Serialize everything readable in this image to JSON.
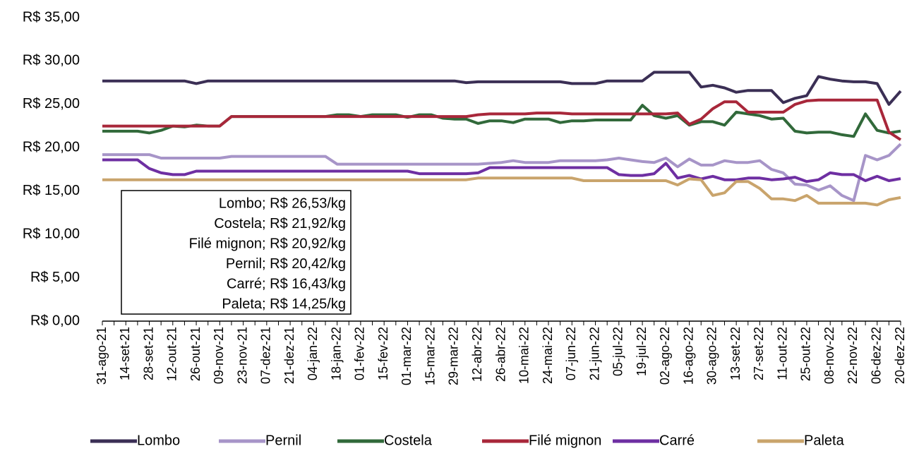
{
  "chart_data": {
    "type": "line",
    "categories": [
      "31-ago-21",
      null,
      "14-set-21",
      null,
      "28-set-21",
      null,
      "12-out-21",
      null,
      "26-out-21",
      null,
      "09-nov-21",
      null,
      "23-nov-21",
      null,
      "07-dez-21",
      null,
      "21-dez-21",
      null,
      "04-jan-22",
      null,
      "18-jan-22",
      null,
      "01-fev-22",
      null,
      "15-fev-22",
      null,
      "01-mar-22",
      null,
      "15-mar-22",
      null,
      "29-mar-22",
      null,
      "12-abr-22",
      null,
      "26-abr-22",
      null,
      "10-mai-22",
      null,
      "24-mai-22",
      null,
      "07-jun-22",
      null,
      "21-jun-22",
      null,
      "05-jul-22",
      null,
      "19-jul-22",
      null,
      "02-ago-22",
      null,
      "16-ago-22",
      null,
      "30-ago-22",
      null,
      "13-set-22",
      null,
      "27-set-22",
      null,
      "11-out-22",
      null,
      "25-out-22",
      null,
      "08-nov-22",
      null,
      "22-nov-22",
      null,
      "06-dez-22",
      null,
      "20-dez-22"
    ],
    "series": [
      {
        "name": "Lombo",
        "color": "#3b2f55",
        "values": [
          27.7,
          27.7,
          27.7,
          27.7,
          27.7,
          27.7,
          27.7,
          27.7,
          27.4,
          27.7,
          27.7,
          27.7,
          27.7,
          27.7,
          27.7,
          27.7,
          27.7,
          27.7,
          27.7,
          27.7,
          27.7,
          27.7,
          27.7,
          27.7,
          27.7,
          27.7,
          27.7,
          27.7,
          27.7,
          27.7,
          27.7,
          27.5,
          27.6,
          27.6,
          27.6,
          27.6,
          27.6,
          27.6,
          27.6,
          27.6,
          27.4,
          27.4,
          27.4,
          27.7,
          27.7,
          27.7,
          27.7,
          28.7,
          28.7,
          28.7,
          28.7,
          27.0,
          27.2,
          26.9,
          26.4,
          26.6,
          26.6,
          26.6,
          25.2,
          25.7,
          26.0,
          28.2,
          27.9,
          27.7,
          27.6,
          27.6,
          27.4,
          25.0,
          26.53
        ]
      },
      {
        "name": "Pernil",
        "color": "#a795c8",
        "values": [
          19.2,
          19.2,
          19.2,
          19.2,
          19.2,
          18.8,
          18.8,
          18.8,
          18.8,
          18.8,
          18.8,
          19.0,
          19.0,
          19.0,
          19.0,
          19.0,
          19.0,
          19.0,
          19.0,
          19.0,
          18.1,
          18.1,
          18.1,
          18.1,
          18.1,
          18.1,
          18.1,
          18.1,
          18.1,
          18.1,
          18.1,
          18.1,
          18.1,
          18.2,
          18.3,
          18.5,
          18.3,
          18.3,
          18.3,
          18.5,
          18.5,
          18.5,
          18.5,
          18.6,
          18.8,
          18.6,
          18.4,
          18.3,
          18.8,
          17.8,
          18.7,
          18.0,
          18.0,
          18.5,
          18.3,
          18.3,
          18.5,
          17.5,
          17.1,
          15.8,
          15.7,
          15.1,
          15.6,
          14.5,
          13.9,
          19.1,
          18.6,
          19.1,
          20.42
        ]
      },
      {
        "name": "Costela",
        "color": "#31693a",
        "values": [
          21.9,
          21.9,
          21.9,
          21.9,
          21.7,
          22.0,
          22.5,
          22.4,
          22.6,
          22.5,
          22.5,
          23.6,
          23.6,
          23.6,
          23.6,
          23.6,
          23.6,
          23.6,
          23.6,
          23.6,
          23.8,
          23.8,
          23.6,
          23.8,
          23.8,
          23.8,
          23.5,
          23.8,
          23.8,
          23.4,
          23.3,
          23.3,
          22.8,
          23.1,
          23.1,
          22.9,
          23.3,
          23.3,
          23.3,
          22.9,
          23.1,
          23.1,
          23.2,
          23.2,
          23.2,
          23.2,
          24.9,
          23.7,
          23.4,
          23.7,
          22.6,
          23.0,
          23.0,
          22.6,
          24.1,
          23.9,
          23.7,
          23.3,
          23.4,
          21.9,
          21.7,
          21.8,
          21.8,
          21.5,
          21.3,
          23.9,
          22.0,
          21.7,
          21.92
        ]
      },
      {
        "name": "Filé mignon",
        "color": "#a8273a",
        "values": [
          22.5,
          22.5,
          22.5,
          22.5,
          22.5,
          22.5,
          22.5,
          22.5,
          22.5,
          22.5,
          22.5,
          23.6,
          23.6,
          23.6,
          23.6,
          23.6,
          23.6,
          23.6,
          23.6,
          23.6,
          23.6,
          23.6,
          23.6,
          23.6,
          23.6,
          23.6,
          23.6,
          23.6,
          23.6,
          23.6,
          23.6,
          23.6,
          23.8,
          23.9,
          23.9,
          23.9,
          23.9,
          24.0,
          24.0,
          24.0,
          23.9,
          23.9,
          23.9,
          23.9,
          23.9,
          23.9,
          23.9,
          23.9,
          23.9,
          24.0,
          22.7,
          23.3,
          24.5,
          25.3,
          25.3,
          24.1,
          24.1,
          24.1,
          24.1,
          25.0,
          25.4,
          25.5,
          25.5,
          25.5,
          25.5,
          25.5,
          25.5,
          21.8,
          20.92
        ]
      },
      {
        "name": "Carré",
        "color": "#6e2fa2",
        "values": [
          18.6,
          18.6,
          18.6,
          18.6,
          17.6,
          17.1,
          16.9,
          16.9,
          17.3,
          17.3,
          17.3,
          17.3,
          17.3,
          17.3,
          17.3,
          17.3,
          17.3,
          17.3,
          17.3,
          17.3,
          17.3,
          17.3,
          17.3,
          17.3,
          17.3,
          17.3,
          17.3,
          17.0,
          17.0,
          17.0,
          17.0,
          17.0,
          17.1,
          17.7,
          17.7,
          17.7,
          17.7,
          17.7,
          17.7,
          17.7,
          17.7,
          17.7,
          17.7,
          17.7,
          16.9,
          16.8,
          16.8,
          17.0,
          18.2,
          16.5,
          16.8,
          16.4,
          16.7,
          16.3,
          16.3,
          16.5,
          16.5,
          16.3,
          16.4,
          16.6,
          16.1,
          16.3,
          17.1,
          16.9,
          16.9,
          16.2,
          16.7,
          16.2,
          16.43
        ]
      },
      {
        "name": "Paleta",
        "color": "#c9a46c",
        "values": [
          16.3,
          16.3,
          16.3,
          16.3,
          16.3,
          16.3,
          16.3,
          16.3,
          16.3,
          16.3,
          16.3,
          16.3,
          16.3,
          16.3,
          16.3,
          16.3,
          16.3,
          16.3,
          16.3,
          16.3,
          16.3,
          16.3,
          16.3,
          16.3,
          16.3,
          16.3,
          16.3,
          16.3,
          16.3,
          16.3,
          16.3,
          16.3,
          16.5,
          16.5,
          16.5,
          16.5,
          16.5,
          16.5,
          16.5,
          16.5,
          16.5,
          16.2,
          16.2,
          16.2,
          16.2,
          16.2,
          16.2,
          16.2,
          16.2,
          15.7,
          16.4,
          16.3,
          14.5,
          14.8,
          16.1,
          16.1,
          15.3,
          14.1,
          14.1,
          13.9,
          14.5,
          13.6,
          13.6,
          13.6,
          13.6,
          13.6,
          13.4,
          14.0,
          14.25
        ]
      }
    ],
    "ylim": [
      0,
      35
    ],
    "yticks": [
      {
        "value": 0,
        "label": "R$ 0,00"
      },
      {
        "value": 5,
        "label": "R$ 5,00"
      },
      {
        "value": 10,
        "label": "R$ 10,00"
      },
      {
        "value": 15,
        "label": "R$ 15,00"
      },
      {
        "value": 20,
        "label": "R$ 20,00"
      },
      {
        "value": 25,
        "label": "R$ 25,00"
      },
      {
        "value": 30,
        "label": "R$ 30,00"
      },
      {
        "value": 35,
        "label": "R$ 35,00"
      }
    ],
    "grid": false,
    "legend": "bottom",
    "annotations": [
      "Lombo; R$ 26,53/kg",
      "Costela; R$ 21,92/kg",
      "Filé mignon; R$ 20,92/kg",
      "Pernil; R$ 20,42/kg",
      "Carré; R$ 16,43/kg",
      "Paleta; R$ 14,25/kg"
    ]
  }
}
